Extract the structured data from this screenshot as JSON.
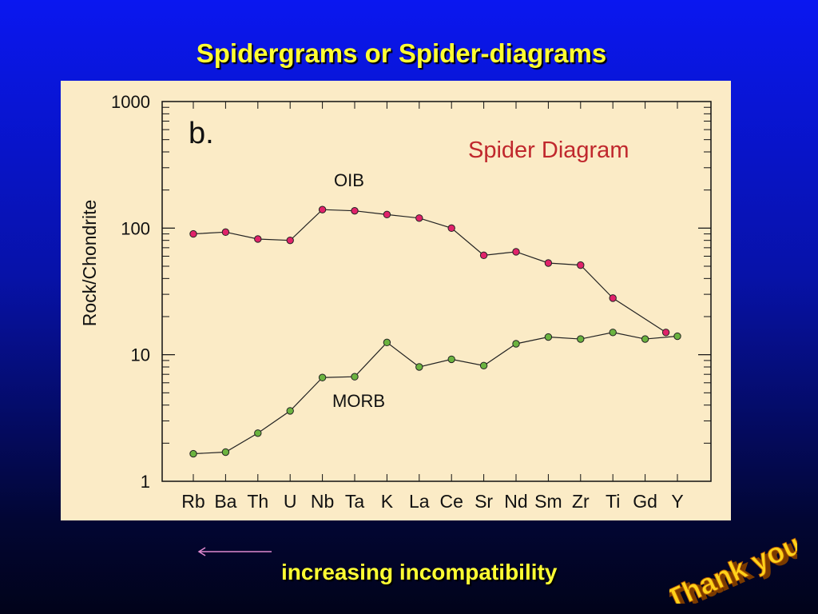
{
  "slide": {
    "title": "Spidergrams or Spider-diagrams",
    "footer": "increasing incompatibility",
    "logo_text": "Thank you"
  },
  "colors": {
    "background_top": "#0a17f0",
    "title_text": "#ffff33",
    "panel": "#fbebc6",
    "diagram_title": "#c0282d",
    "oib_marker": "#e0226a",
    "morb_marker": "#6bb33f",
    "arrow": "#e08ad0"
  },
  "chart_data": {
    "type": "line",
    "panel_label": "b.",
    "title": "Spider Diagram",
    "xlabel": "",
    "ylabel": "Rock/Chondrite",
    "y_scale": "log",
    "ylim": [
      1,
      1000
    ],
    "y_ticks": [
      "1",
      "10",
      "100",
      "1000"
    ],
    "grid": false,
    "categories": [
      "Rb",
      "Ba",
      "Th",
      "U",
      "Nb",
      "Ta",
      "K",
      "La",
      "Ce",
      "Sr",
      "Nd",
      "Sm",
      "Zr",
      "Ti",
      "Gd",
      "Y"
    ],
    "series": [
      {
        "name": "OIB",
        "values": [
          90,
          93,
          82,
          80,
          140,
          137,
          128,
          120,
          100,
          61,
          65,
          53,
          51,
          28,
          15,
          null
        ]
      },
      {
        "name": "MORB",
        "values": [
          1.65,
          1.7,
          2.4,
          3.6,
          6.6,
          6.7,
          12.5,
          8.0,
          9.2,
          8.2,
          12.2,
          13.8,
          13.3,
          15.0,
          13.3,
          14.0
        ]
      }
    ]
  }
}
